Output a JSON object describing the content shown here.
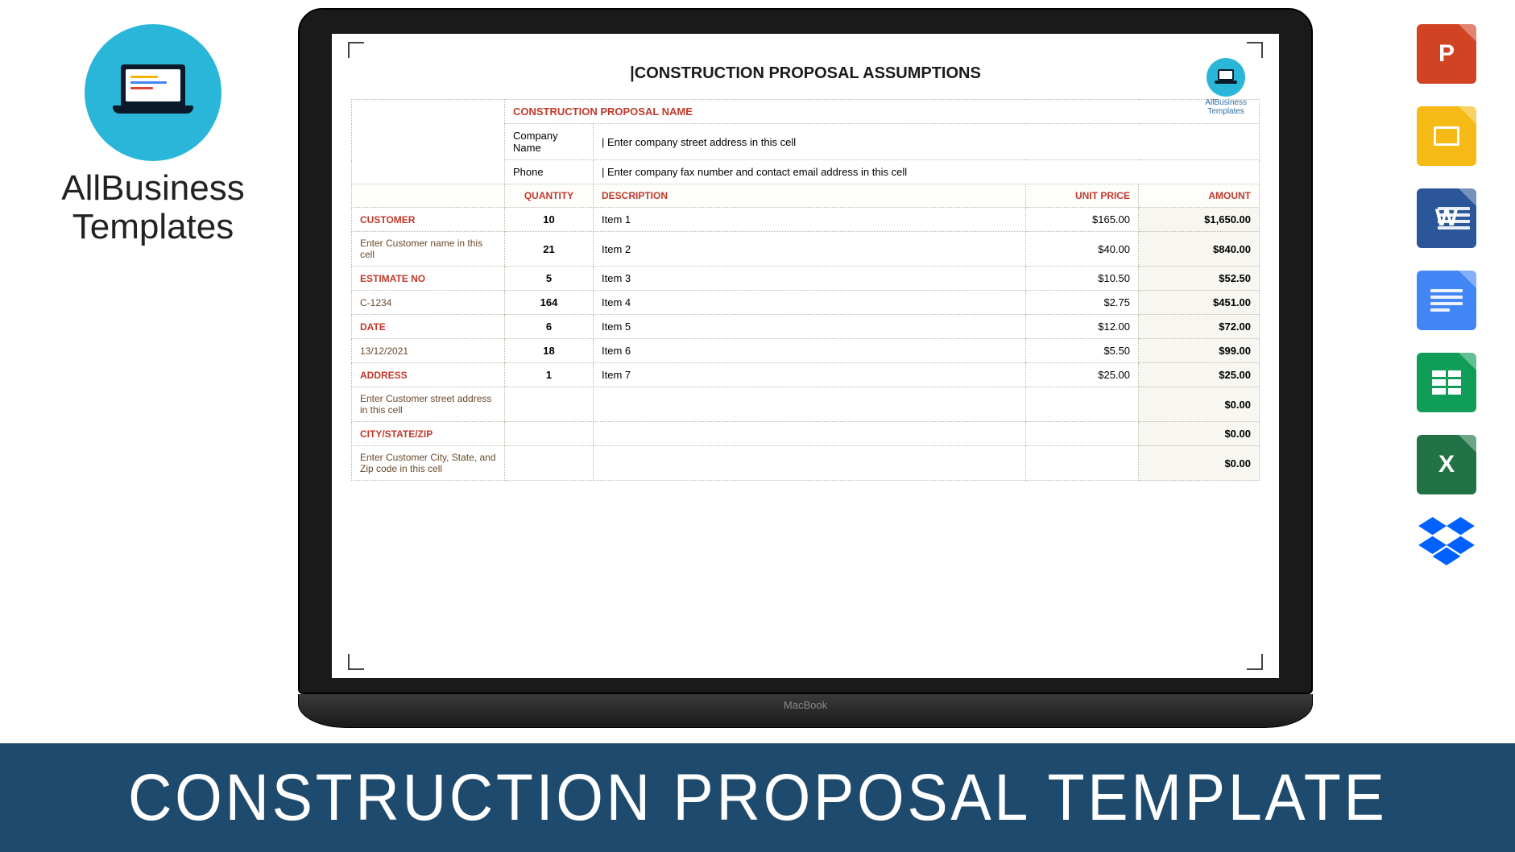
{
  "brand": {
    "line1": "AllBusiness",
    "line2": "Templates",
    "small_label": "AllBusiness\nTemplates"
  },
  "document": {
    "title": "CONSTRUCTION PROPOSAL ASSUMPTIONS",
    "proposal_name_label": "CONSTRUCTION PROPOSAL NAME",
    "company_name_label": "Company Name",
    "company_address_placeholder": "| Enter company street address in this cell",
    "phone_label": "Phone",
    "phone_placeholder": "| Enter company fax number and contact email address in this cell",
    "headers": {
      "quantity": "QUANTITY",
      "description": "DESCRIPTION",
      "unit_price": "UNIT PRICE",
      "amount": "AMOUNT"
    },
    "side": [
      {
        "label": "CUSTOMER",
        "red": true
      },
      {
        "label": "Enter Customer name in this cell",
        "red": false
      },
      {
        "label": "ESTIMATE NO",
        "red": true
      },
      {
        "label": "C-1234",
        "red": false
      },
      {
        "label": "DATE",
        "red": true
      },
      {
        "label": "13/12/2021",
        "red": false
      },
      {
        "label": "ADDRESS",
        "red": true
      },
      {
        "label": "Enter Customer street address in this cell",
        "red": false
      },
      {
        "label": "CITY/STATE/ZIP",
        "red": true
      },
      {
        "label": "Enter Customer City, State, and Zip code in this cell",
        "red": false
      }
    ],
    "rows": [
      {
        "qty": "10",
        "desc": "Item 1",
        "unit": "$165.00",
        "amt": "$1,650.00"
      },
      {
        "qty": "21",
        "desc": "Item 2",
        "unit": "$40.00",
        "amt": "$840.00"
      },
      {
        "qty": "5",
        "desc": "Item 3",
        "unit": "$10.50",
        "amt": "$52.50"
      },
      {
        "qty": "164",
        "desc": "Item 4",
        "unit": "$2.75",
        "amt": "$451.00"
      },
      {
        "qty": "6",
        "desc": "Item 5",
        "unit": "$12.00",
        "amt": "$72.00"
      },
      {
        "qty": "18",
        "desc": "Item 6",
        "unit": "$5.50",
        "amt": "$99.00"
      },
      {
        "qty": "1",
        "desc": "Item 7",
        "unit": "$25.00",
        "amt": "$25.00"
      },
      {
        "qty": "",
        "desc": "",
        "unit": "",
        "amt": "$0.00"
      },
      {
        "qty": "",
        "desc": "",
        "unit": "",
        "amt": "$0.00"
      },
      {
        "qty": "",
        "desc": "",
        "unit": "",
        "amt": "$0.00"
      }
    ]
  },
  "macbook_label": "MacBook",
  "banner": "CONSTRUCTION PROPOSAL TEMPLATE",
  "icons": {
    "powerpoint": "P",
    "word": "W",
    "excel": "X"
  },
  "colors": {
    "brand_circle": "#29b6d8",
    "banner_bg": "#1e4a6d",
    "red_label": "#c0392b",
    "powerpoint": "#d04423",
    "slides": "#f5ba15",
    "word": "#2b579a",
    "docs": "#4285f4",
    "sheets": "#0f9d58",
    "excel": "#217346",
    "dropbox": "#0061ff"
  }
}
